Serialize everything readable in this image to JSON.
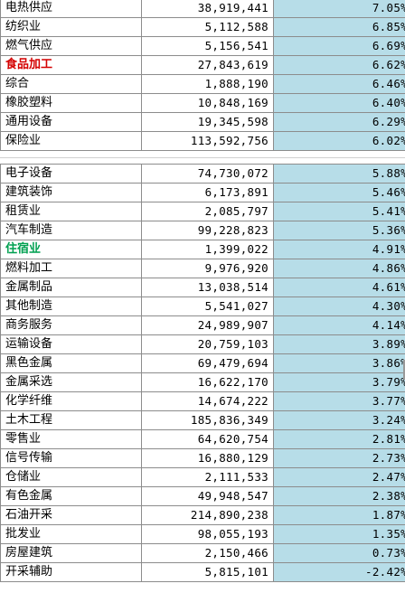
{
  "top_rows": [
    {
      "name": "电热供应",
      "value": "38,919,441",
      "pct": "7.05%",
      "hl": ""
    },
    {
      "name": "纺织业",
      "value": "5,112,588",
      "pct": "6.85%",
      "hl": ""
    },
    {
      "name": "燃气供应",
      "value": "5,156,541",
      "pct": "6.69%",
      "hl": ""
    },
    {
      "name": "食品加工",
      "value": "27,843,619",
      "pct": "6.62%",
      "hl": "red"
    },
    {
      "name": "综合",
      "value": "1,888,190",
      "pct": "6.46%",
      "hl": ""
    },
    {
      "name": "橡胶塑料",
      "value": "10,848,169",
      "pct": "6.40%",
      "hl": ""
    },
    {
      "name": "通用设备",
      "value": "19,345,598",
      "pct": "6.29%",
      "hl": ""
    },
    {
      "name": "保险业",
      "value": "113,592,756",
      "pct": "6.02%",
      "hl": ""
    }
  ],
  "bottom_rows": [
    {
      "name": "电子设备",
      "value": "74,730,072",
      "pct": "5.88%",
      "hl": ""
    },
    {
      "name": "建筑装饰",
      "value": "6,173,891",
      "pct": "5.46%",
      "hl": ""
    },
    {
      "name": "租赁业",
      "value": "2,085,797",
      "pct": "5.41%",
      "hl": ""
    },
    {
      "name": "汽车制造",
      "value": "99,228,823",
      "pct": "5.36%",
      "hl": ""
    },
    {
      "name": "住宿业",
      "value": "1,399,022",
      "pct": "4.91%",
      "hl": "green"
    },
    {
      "name": "燃料加工",
      "value": "9,976,920",
      "pct": "4.86%",
      "hl": ""
    },
    {
      "name": "金属制品",
      "value": "13,038,514",
      "pct": "4.61%",
      "hl": ""
    },
    {
      "name": "其他制造",
      "value": "5,541,027",
      "pct": "4.30%",
      "hl": ""
    },
    {
      "name": "商务服务",
      "value": "24,989,907",
      "pct": "4.14%",
      "hl": ""
    },
    {
      "name": "运输设备",
      "value": "20,759,103",
      "pct": "3.89%",
      "hl": ""
    },
    {
      "name": "黑色金属",
      "value": "69,479,694",
      "pct": "3.86%",
      "hl": ""
    },
    {
      "name": "金属采选",
      "value": "16,622,170",
      "pct": "3.79%",
      "hl": ""
    },
    {
      "name": "化学纤维",
      "value": "14,674,222",
      "pct": "3.77%",
      "hl": ""
    },
    {
      "name": "土木工程",
      "value": "185,836,349",
      "pct": "3.24%",
      "hl": ""
    },
    {
      "name": "零售业",
      "value": "64,620,754",
      "pct": "2.81%",
      "hl": ""
    },
    {
      "name": "信号传输",
      "value": "16,880,129",
      "pct": "2.73%",
      "hl": ""
    },
    {
      "name": "仓储业",
      "value": "2,111,533",
      "pct": "2.47%",
      "hl": ""
    },
    {
      "name": "有色金属",
      "value": "49,948,547",
      "pct": "2.38%",
      "hl": ""
    },
    {
      "name": "石油开采",
      "value": "214,890,238",
      "pct": "1.87%",
      "hl": ""
    },
    {
      "name": "批发业",
      "value": "98,055,193",
      "pct": "1.35%",
      "hl": ""
    },
    {
      "name": "房屋建筑",
      "value": "2,150,466",
      "pct": "0.73%",
      "hl": ""
    },
    {
      "name": "开采辅助",
      "value": "5,815,101",
      "pct": "-2.42%",
      "hl": ""
    }
  ],
  "colors": {
    "pct_background": "#b7dde8",
    "highlight_red": "#d40000",
    "highlight_green": "#00a050",
    "grid": "#8c8c8c"
  }
}
